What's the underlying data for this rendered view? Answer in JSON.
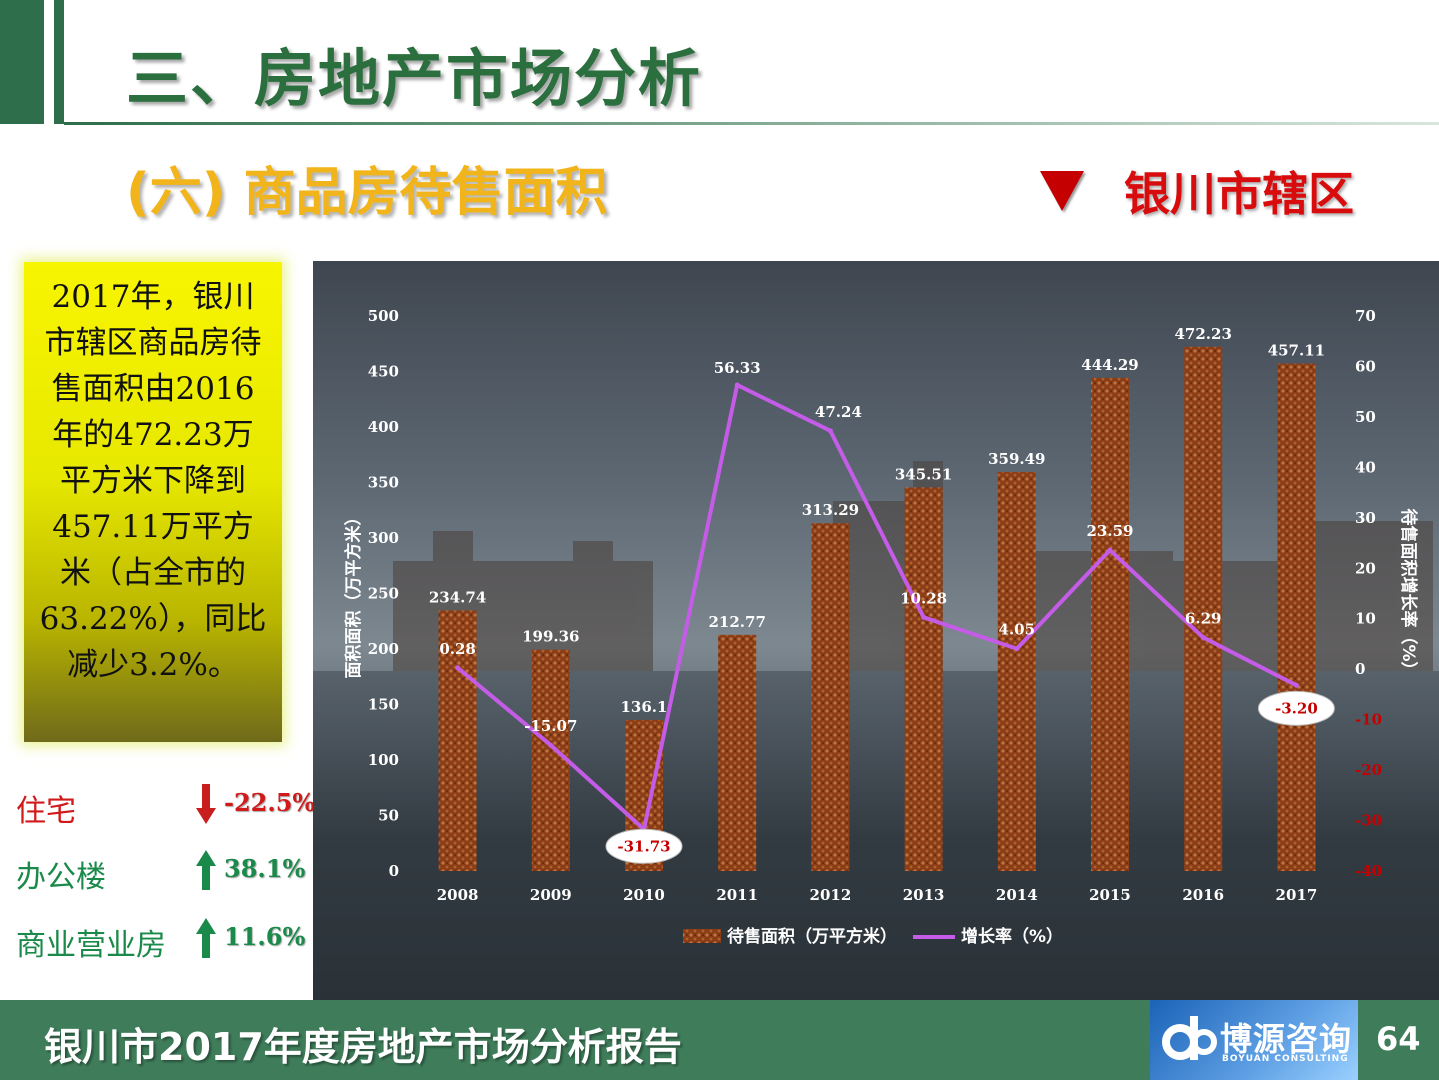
{
  "slide": {
    "title": "三、房地产市场分析",
    "subtitle": "(六) 商品房待售面积",
    "region_label": "银川市辖区",
    "summary_text": "2017年，银川市辖区商品房待售面积由2016年的472.23万平方米下降到457.11万平方米（占全市的63.22%），同比减少3.2%。",
    "footer_text": "银川市2017年度房地产市场分析报告",
    "logo_text": "博源咨询",
    "logo_en": "BOYUAN CONSULTING",
    "page_number": "64",
    "colors": {
      "green": "#2e6e4a",
      "yellow": "#f1b51b",
      "red": "#d80c0c"
    }
  },
  "stats": [
    {
      "name": "住宅",
      "value": "-22.5%",
      "direction": "down",
      "color": "#d11a1a"
    },
    {
      "name": "办公楼",
      "value": "38.1%",
      "direction": "up",
      "color": "#1a8a4a"
    },
    {
      "name": "商业营业房",
      "value": "11.6%",
      "direction": "up",
      "color": "#1a8a4a"
    }
  ],
  "chart_data": {
    "type": "bar",
    "categories": [
      "2008",
      "2009",
      "2010",
      "2011",
      "2012",
      "2013",
      "2014",
      "2015",
      "2016",
      "2017"
    ],
    "series": [
      {
        "name": "待售面积（万平方米）",
        "kind": "bar",
        "axis": "left",
        "values": [
          234.74,
          199.36,
          136.1,
          212.77,
          313.29,
          345.51,
          359.49,
          444.29,
          472.23,
          457.11
        ],
        "labels": [
          "234.74",
          "199.36",
          "136.1",
          "212.77",
          "313.29",
          "345.51",
          "359.49",
          "444.29",
          "472.23",
          "457.11"
        ]
      },
      {
        "name": "增长率（%）",
        "kind": "line",
        "axis": "right",
        "values": [
          0.28,
          -15.07,
          -31.73,
          56.33,
          47.24,
          10.28,
          4.05,
          23.59,
          6.29,
          -3.2
        ],
        "labels": [
          "0.28",
          "-15.07",
          "-31.73",
          "56.33",
          "47.24",
          "10.28",
          "4.05",
          "23.59",
          "6.29",
          "-3.20"
        ]
      }
    ],
    "ylabel": "面积面积（万平方米）",
    "y2label": "待售面积增长率（%）",
    "ylim": [
      0,
      500
    ],
    "y2lim": [
      -40,
      70
    ],
    "yticks": [
      "0",
      "50",
      "100",
      "150",
      "200",
      "250",
      "300",
      "350",
      "400",
      "450",
      "500"
    ],
    "y2ticks": [
      "-40",
      "-30",
      "-20",
      "-10",
      "0",
      "10",
      "20",
      "30",
      "40",
      "50",
      "60",
      "70"
    ],
    "legend_position": "bottom",
    "bar_color": "#8a3d17",
    "line_color": "#c45ce8",
    "grid": false
  }
}
